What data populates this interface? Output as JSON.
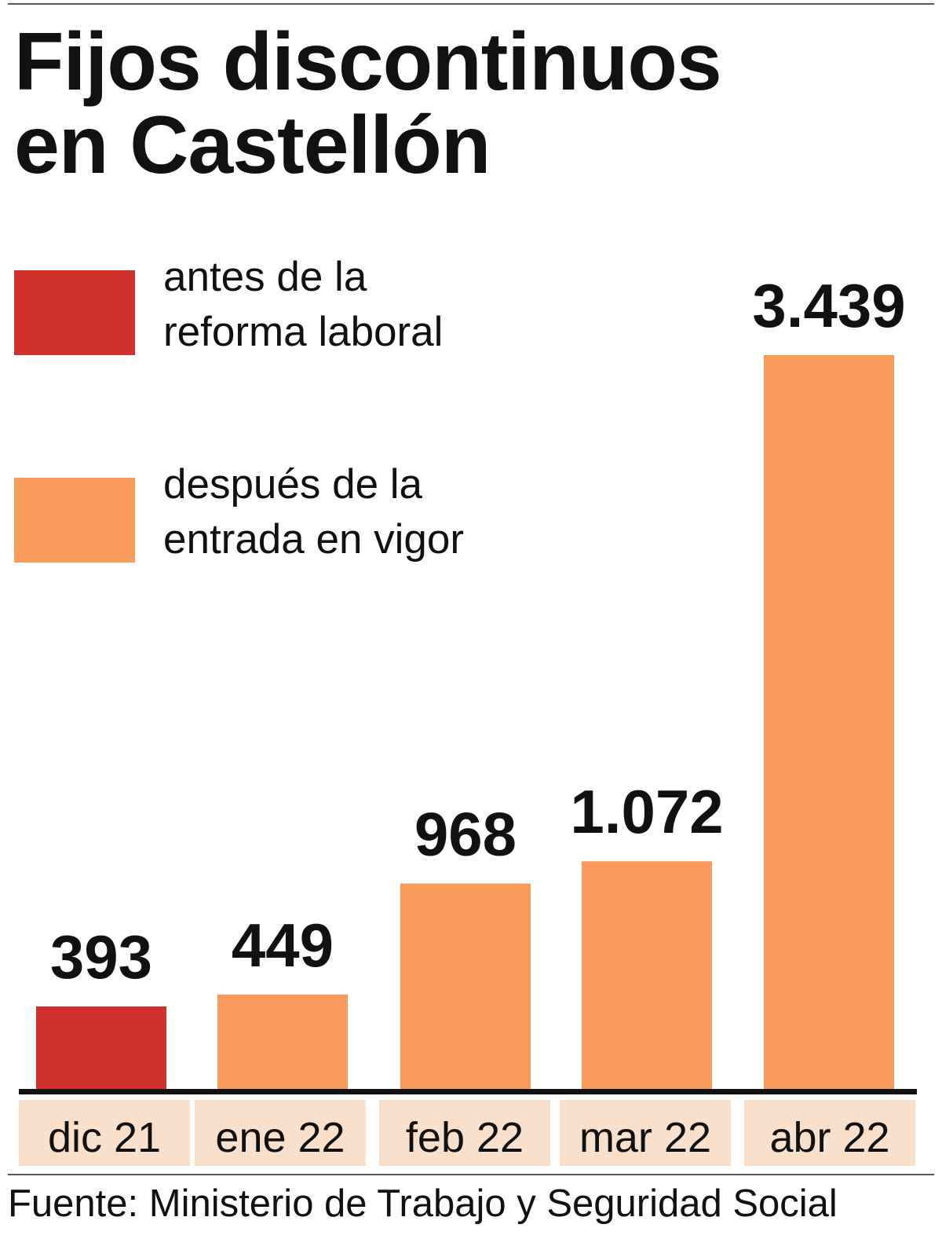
{
  "chart_data": {
    "type": "bar",
    "title_lines": [
      "Fijos discontinuos",
      "en Castellón"
    ],
    "categories": [
      "dic 21",
      "ene 22",
      "feb 22",
      "mar 22",
      "abr 22"
    ],
    "values": [
      393,
      449,
      968,
      1072,
      3439
    ],
    "value_labels": [
      "393",
      "449",
      "968",
      "1.072",
      "3.439"
    ],
    "bar_groups": [
      "antes",
      "despues",
      "despues",
      "despues",
      "despues"
    ],
    "legend": [
      {
        "key": "antes",
        "lines": [
          "antes de la",
          "reforma laboral"
        ],
        "color": "#d0312d"
      },
      {
        "key": "despues",
        "lines": [
          "después de la",
          "entrada en vigor"
        ],
        "color": "#f79a5c"
      }
    ],
    "ylim": [
      0,
      3439
    ],
    "grid": false,
    "legend_placement": "top-left",
    "source": "Fuente: Ministerio de Trabajo y Seguridad Social"
  },
  "colors": {
    "antes": "#d0312d",
    "despues": "#f79a5c",
    "category_band": "#f9e0cc",
    "axis": "#111111"
  }
}
